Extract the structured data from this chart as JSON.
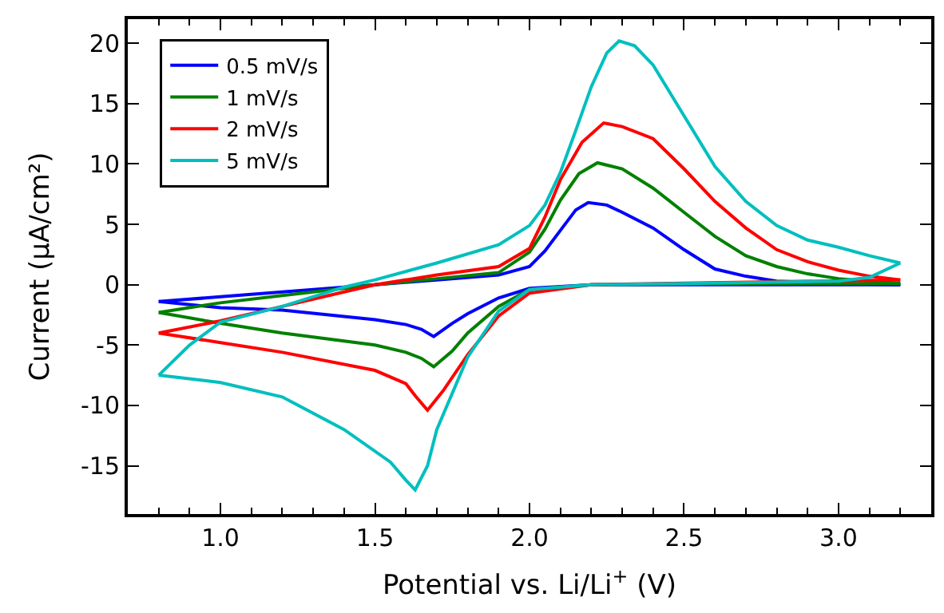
{
  "chart_data": {
    "type": "line",
    "xlabel": "Potential vs. Li/Li$^{+}$ (V)",
    "ylabel": "Current (µA/cm²)",
    "xlim": [
      0.7,
      3.3
    ],
    "ylim": [
      -19,
      22
    ],
    "xticks": [
      {
        "value": 0.8,
        "label": null
      },
      {
        "value": 0.9,
        "label": null
      },
      {
        "value": 1.0,
        "label": "1.0"
      },
      {
        "value": 1.1,
        "label": null
      },
      {
        "value": 1.2,
        "label": null
      },
      {
        "value": 1.3,
        "label": null
      },
      {
        "value": 1.4,
        "label": null
      },
      {
        "value": 1.5,
        "label": "1.5"
      },
      {
        "value": 1.6,
        "label": null
      },
      {
        "value": 1.7,
        "label": null
      },
      {
        "value": 1.8,
        "label": null
      },
      {
        "value": 1.9,
        "label": null
      },
      {
        "value": 2.0,
        "label": "2.0"
      },
      {
        "value": 2.1,
        "label": null
      },
      {
        "value": 2.2,
        "label": null
      },
      {
        "value": 2.3,
        "label": null
      },
      {
        "value": 2.4,
        "label": null
      },
      {
        "value": 2.5,
        "label": "2.5"
      },
      {
        "value": 2.6,
        "label": null
      },
      {
        "value": 2.7,
        "label": null
      },
      {
        "value": 2.8,
        "label": null
      },
      {
        "value": 2.9,
        "label": null
      },
      {
        "value": 3.0,
        "label": "3.0"
      },
      {
        "value": 3.1,
        "label": null
      },
      {
        "value": 3.2,
        "label": null
      }
    ],
    "yticks": [
      -15,
      -10,
      -5,
      0,
      5,
      10,
      15,
      20
    ],
    "grid": false,
    "legend": "top left",
    "marker": "none",
    "line_style": "solid",
    "series": [
      {
        "name": "0.5 mV/s",
        "color": "#0000ff",
        "x": [
          0.8,
          1.0,
          1.2,
          1.4,
          1.5,
          1.7,
          1.9,
          2.0,
          2.05,
          2.1,
          2.15,
          2.19,
          2.25,
          2.3,
          2.4,
          2.5,
          2.6,
          2.7,
          2.8,
          3.0,
          3.2
        ],
        "values": [
          -1.4,
          -1.0,
          -0.6,
          -0.2,
          0.0,
          0.4,
          0.8,
          1.5,
          2.8,
          4.5,
          6.2,
          6.8,
          6.6,
          6.0,
          4.7,
          2.9,
          1.3,
          0.7,
          0.3,
          0.1,
          0.0
        ]
      },
      {
        "color": "#0000ff",
        "x": [
          0.8,
          1.0,
          1.2,
          1.5,
          1.6,
          1.65,
          1.69,
          1.75,
          1.8,
          1.9,
          2.0,
          2.2,
          2.5,
          3.2
        ],
        "values": [
          -1.4,
          -1.9,
          -2.1,
          -2.9,
          -3.3,
          -3.7,
          -4.3,
          -3.2,
          -2.4,
          -1.1,
          -0.3,
          0.0,
          0.0,
          0.0
        ]
      },
      {
        "name": "1 mV/s",
        "color": "#008000",
        "x": [
          0.8,
          1.0,
          1.2,
          1.4,
          1.5,
          1.7,
          1.9,
          2.0,
          2.05,
          2.1,
          2.16,
          2.22,
          2.3,
          2.4,
          2.5,
          2.6,
          2.7,
          2.8,
          2.9,
          3.0,
          3.2
        ],
        "values": [
          -2.3,
          -1.5,
          -0.9,
          -0.3,
          0.0,
          0.5,
          1.0,
          2.7,
          4.6,
          7.0,
          9.2,
          10.1,
          9.6,
          8.0,
          6.0,
          4.0,
          2.4,
          1.5,
          0.9,
          0.5,
          0.1
        ]
      },
      {
        "color": "#008000",
        "x": [
          0.8,
          1.0,
          1.2,
          1.5,
          1.6,
          1.65,
          1.69,
          1.75,
          1.8,
          1.9,
          2.0,
          2.2,
          3.2
        ],
        "values": [
          -2.3,
          -3.2,
          -4.0,
          -5.0,
          -5.6,
          -6.1,
          -6.8,
          -5.5,
          -4.0,
          -1.8,
          -0.4,
          0.0,
          0.1
        ]
      },
      {
        "name": "2 mV/s",
        "color": "#ff0000",
        "x": [
          0.8,
          1.0,
          1.2,
          1.4,
          1.5,
          1.7,
          1.9,
          2.0,
          2.05,
          2.1,
          2.17,
          2.24,
          2.3,
          2.4,
          2.5,
          2.6,
          2.7,
          2.8,
          2.9,
          3.0,
          3.1,
          3.2
        ],
        "values": [
          -4.0,
          -3.0,
          -1.8,
          -0.6,
          0.0,
          0.8,
          1.5,
          3.0,
          5.6,
          8.7,
          11.8,
          13.4,
          13.1,
          12.1,
          9.6,
          6.9,
          4.7,
          2.9,
          1.9,
          1.2,
          0.7,
          0.4
        ]
      },
      {
        "color": "#ff0000",
        "x": [
          0.8,
          1.0,
          1.2,
          1.5,
          1.6,
          1.63,
          1.67,
          1.72,
          1.8,
          1.9,
          2.0,
          2.2,
          3.2
        ],
        "values": [
          -4.0,
          -4.8,
          -5.6,
          -7.1,
          -8.2,
          -9.2,
          -10.4,
          -8.8,
          -5.8,
          -2.6,
          -0.7,
          0.0,
          0.4
        ]
      },
      {
        "name": "5 mV/s",
        "color": "#00bfbf",
        "x": [
          0.8,
          0.9,
          1.0,
          1.2,
          1.4,
          1.5,
          1.7,
          1.9,
          2.0,
          2.05,
          2.1,
          2.15,
          2.2,
          2.25,
          2.29,
          2.34,
          2.4,
          2.5,
          2.6,
          2.7,
          2.8,
          2.9,
          3.0,
          3.1,
          3.2
        ],
        "values": [
          -7.5,
          -5.0,
          -3.1,
          -1.8,
          -0.2,
          0.4,
          1.8,
          3.3,
          4.9,
          6.6,
          9.3,
          12.8,
          16.4,
          19.2,
          20.2,
          19.8,
          18.2,
          14.0,
          9.8,
          6.9,
          4.9,
          3.7,
          3.1,
          2.4,
          1.8
        ]
      },
      {
        "color": "#00bfbf",
        "x": [
          0.8,
          1.0,
          1.2,
          1.4,
          1.55,
          1.6,
          1.63,
          1.67,
          1.7,
          1.8,
          1.9,
          2.0,
          2.2,
          2.5,
          3.0,
          3.1,
          3.2
        ],
        "values": [
          -7.5,
          -8.1,
          -9.3,
          -12.0,
          -14.7,
          -16.2,
          -17.0,
          -15.0,
          -12.0,
          -6.0,
          -2.2,
          -0.4,
          0.0,
          0.1,
          0.3,
          0.6,
          1.8
        ]
      }
    ]
  }
}
